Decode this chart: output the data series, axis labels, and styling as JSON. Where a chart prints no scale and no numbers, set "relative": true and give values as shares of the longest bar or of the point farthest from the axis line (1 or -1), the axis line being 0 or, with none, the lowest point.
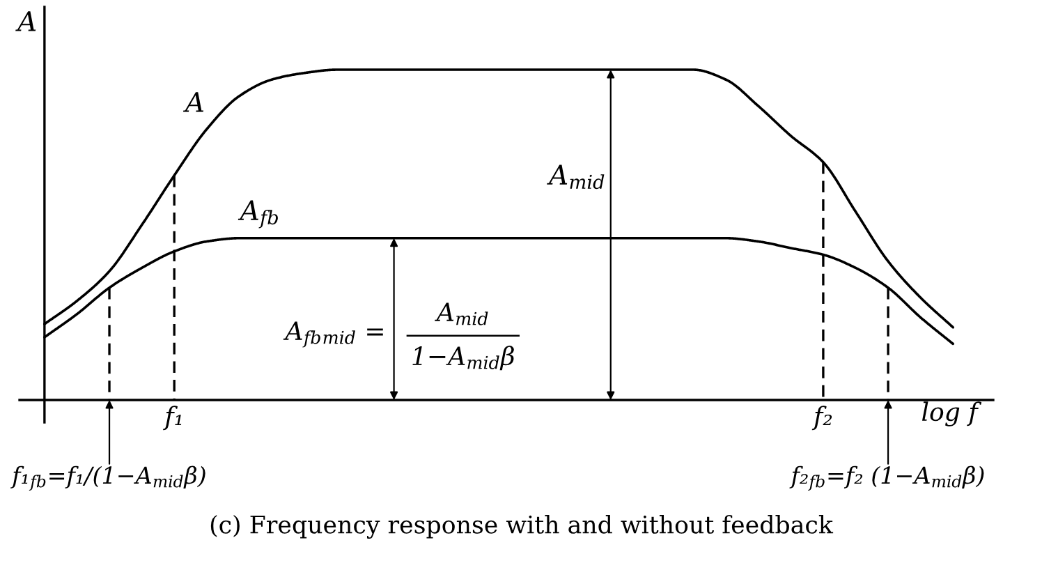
{
  "chart_data": {
    "type": "line",
    "relative": true,
    "ylabel": "A",
    "xlabel": "log f",
    "categories": [
      null,
      null,
      "f₁$_{fb}$=f₁/(1−A$_{mid}$β)",
      null,
      "f₁",
      null,
      null,
      null,
      null,
      null,
      null,
      null,
      null,
      null,
      null,
      null,
      null,
      null,
      null,
      null,
      null,
      null,
      null,
      null,
      "f₂",
      null,
      "f₂$_{fb}$=f₂ (1−A$_{mid}$β)",
      null,
      null
    ],
    "series": [
      {
        "name": "A",
        "color": "#000000",
        "values": [
          0.23,
          0.3,
          0.39,
          0.53,
          0.68,
          0.82,
          0.92,
          0.97,
          0.99,
          1,
          1,
          1,
          1,
          1,
          1,
          1,
          1,
          1,
          1,
          1,
          1,
          0.97,
          0.89,
          0.8,
          0.72,
          0.57,
          0.42,
          0.31,
          0.22
        ]
      },
      {
        "name": "A$_{fb}$",
        "color": "#000000",
        "values": [
          0.19,
          0.26,
          0.34,
          0.4,
          0.45,
          0.48,
          0.49,
          0.49,
          0.49,
          0.49,
          0.49,
          0.49,
          0.49,
          0.49,
          0.49,
          0.49,
          0.49,
          0.49,
          0.49,
          0.49,
          0.49,
          0.49,
          0.48,
          0.46,
          0.44,
          0.4,
          0.34,
          0.25,
          0.17
        ]
      },
      {
        "color": "#000000",
        "line_style": "dashed",
        "x": [
          "f₁",
          "f₁"
        ],
        "values": [
          0.68,
          0
        ]
      },
      {
        "color": "#000000",
        "line_style": "dashed",
        "x": [
          "f₂",
          "f₂"
        ],
        "values": [
          0.72,
          0
        ]
      },
      {
        "color": "#000000",
        "line_style": "dashed",
        "x": [
          "f₁$_{fb}$=f₁/(1−A$_{mid}$β)",
          "f₁$_{fb}$=f₁/(1−A$_{mid}$β)"
        ],
        "values": [
          0.34,
          0
        ]
      },
      {
        "color": "#000000",
        "line_style": "dashed",
        "x": [
          "f₂$_{fb}$=f₂ (1−A$_{mid}$β)",
          "f₂$_{fb}$=f₂ (1−A$_{mid}$β)"
        ],
        "values": [
          0.34,
          0
        ]
      }
    ],
    "annotations": [
      "A$_{mid}$",
      "A$_{fb}$$_{mid}$ =",
      "A$_{mid}$",
      "1−A$_{mid}$β",
      "(c) Frequency response with and without feedback"
    ]
  }
}
